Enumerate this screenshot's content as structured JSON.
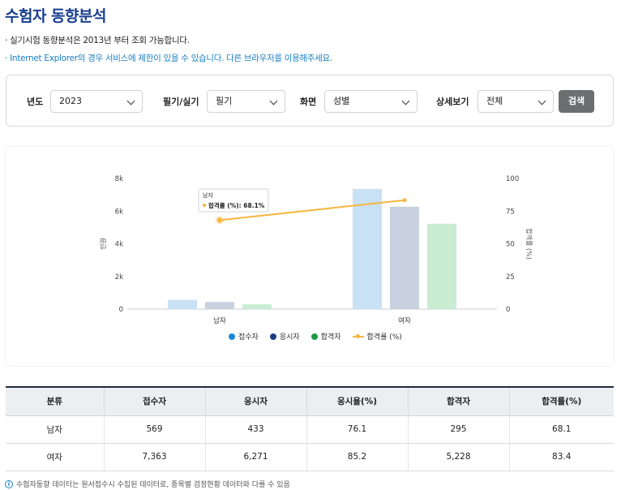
{
  "page": {
    "title": "수험자 동향분석",
    "notice_1": "· 실기시험 동향분석은 2013년 부터 조회 가능합니다.",
    "notice_2": "· Internet Explorer의 경우 서비스에 제한이 있을 수 있습니다. 다른 브라우저를 이용해주세요."
  },
  "filters": {
    "year_label": "년도",
    "year_value": "2023",
    "type_label": "필기/실기",
    "type_value": "필기",
    "view_label": "화면",
    "view_value": "성별",
    "detail_label": "상세보기",
    "detail_value": "전체",
    "search_label": "검색"
  },
  "chart_data": {
    "type": "bar",
    "categories": [
      "남자",
      "여자"
    ],
    "ylabel": "인원",
    "y2label": "합격률 (%)",
    "ylim": [
      0,
      8000
    ],
    "y_ticks": [
      "0",
      "2k",
      "4k",
      "6k",
      "8k"
    ],
    "y2lim": [
      0,
      100
    ],
    "y2_ticks": [
      "0",
      "25",
      "50",
      "75",
      "100"
    ],
    "series": [
      {
        "name": "접수자",
        "type": "bar",
        "values": [
          569,
          7363
        ],
        "color": "#c9e1f5",
        "legend_color": "#1b86d8"
      },
      {
        "name": "응시자",
        "type": "bar",
        "values": [
          433,
          6271
        ],
        "color": "#c7d1df",
        "legend_color": "#1d3f86"
      },
      {
        "name": "합격자",
        "type": "bar",
        "values": [
          295,
          5228
        ],
        "color": "#c9ecd3",
        "legend_color": "#1f9a44"
      },
      {
        "name": "합격률 (%)",
        "type": "line",
        "axis": "right",
        "values": [
          68.1,
          83.4
        ],
        "color": "#f4b63e"
      }
    ],
    "tooltip": {
      "title": "남자",
      "text": "합격률 (%): 68.1%"
    },
    "legend_position": "bottom",
    "grid": false
  },
  "table": {
    "headers": [
      "분류",
      "접수자",
      "응시자",
      "응시율(%)",
      "합격자",
      "합격률(%)"
    ],
    "rows": [
      [
        "남자",
        "569",
        "433",
        "76.1",
        "295",
        "68.1"
      ],
      [
        "여자",
        "7,363",
        "6,271",
        "85.2",
        "5,228",
        "83.4"
      ]
    ]
  },
  "footnote": {
    "icon": "info-icon",
    "text": "수험자동향 데이터는 원서접수시 수집된 데이터로, 종목별 검정현황 데이터와 다를 수 있음"
  }
}
